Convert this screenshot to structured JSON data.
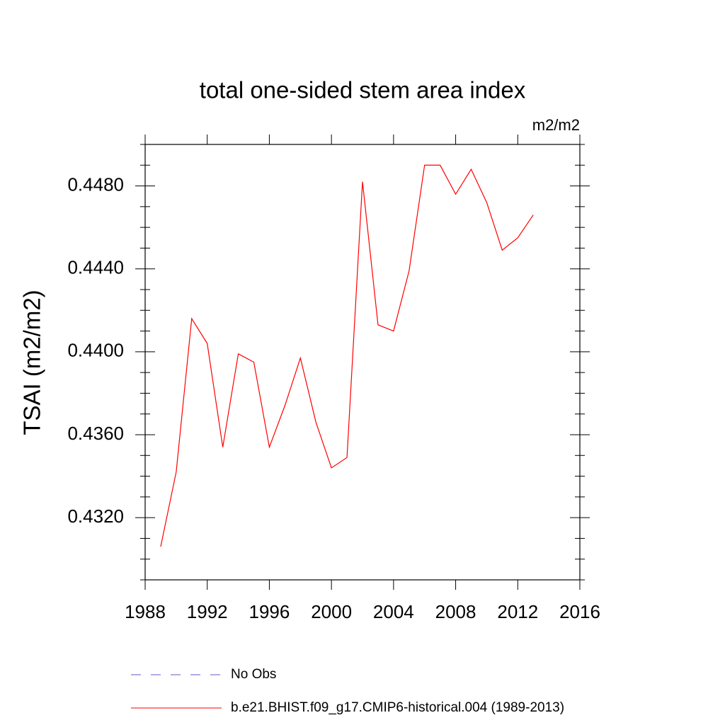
{
  "chart_data": {
    "type": "line",
    "title": "total one-sided stem area index",
    "units": "m2/m2",
    "y_label": "TSAI  (m2/m2)",
    "x": [
      1989,
      1990,
      1991,
      1992,
      1993,
      1994,
      1995,
      1996,
      1997,
      1998,
      1999,
      2000,
      2001,
      2002,
      2003,
      2004,
      2005,
      2006,
      2007,
      2008,
      2009,
      2010,
      2011,
      2012,
      2013
    ],
    "series": [
      {
        "name": "No Obs",
        "color": "#6a5acd",
        "dash": "dashed",
        "values": [
          null,
          null,
          null,
          null,
          null,
          null,
          null,
          null,
          null,
          null,
          null,
          null,
          null,
          null,
          null,
          null,
          null,
          null,
          null,
          null,
          null,
          null,
          null,
          null,
          null
        ]
      },
      {
        "name": "b.e21.BHIST.f09_g17.CMIP6-historical.004 (1989-2013)",
        "color": "#ff0000",
        "dash": "solid",
        "values": [
          0.4306,
          0.4342,
          0.4416,
          0.4404,
          0.4354,
          0.4399,
          0.4395,
          0.4354,
          0.4374,
          0.4397,
          0.4366,
          0.4344,
          0.4349,
          0.4482,
          0.4413,
          0.441,
          0.4439,
          0.449,
          0.449,
          0.4476,
          0.4488,
          0.4472,
          0.4449,
          0.4455,
          0.4466
        ]
      }
    ],
    "xlim": [
      1988,
      2016
    ],
    "xticks": [
      1988,
      1992,
      1996,
      2000,
      2004,
      2008,
      2012,
      2016
    ],
    "ylim": [
      0.429,
      0.45
    ],
    "yticks": [
      {
        "value": 0.432,
        "label": "0.4320"
      },
      {
        "value": 0.436,
        "label": "0.4360"
      },
      {
        "value": 0.44,
        "label": "0.4400"
      },
      {
        "value": 0.444,
        "label": "0.4440"
      },
      {
        "value": 0.448,
        "label": "0.4480"
      }
    ],
    "yminorticks": [
      0.429,
      0.43,
      0.431,
      0.433,
      0.434,
      0.435,
      0.437,
      0.438,
      0.439,
      0.441,
      0.442,
      0.443,
      0.445,
      0.446,
      0.447,
      0.449,
      0.45
    ],
    "grid": false
  }
}
